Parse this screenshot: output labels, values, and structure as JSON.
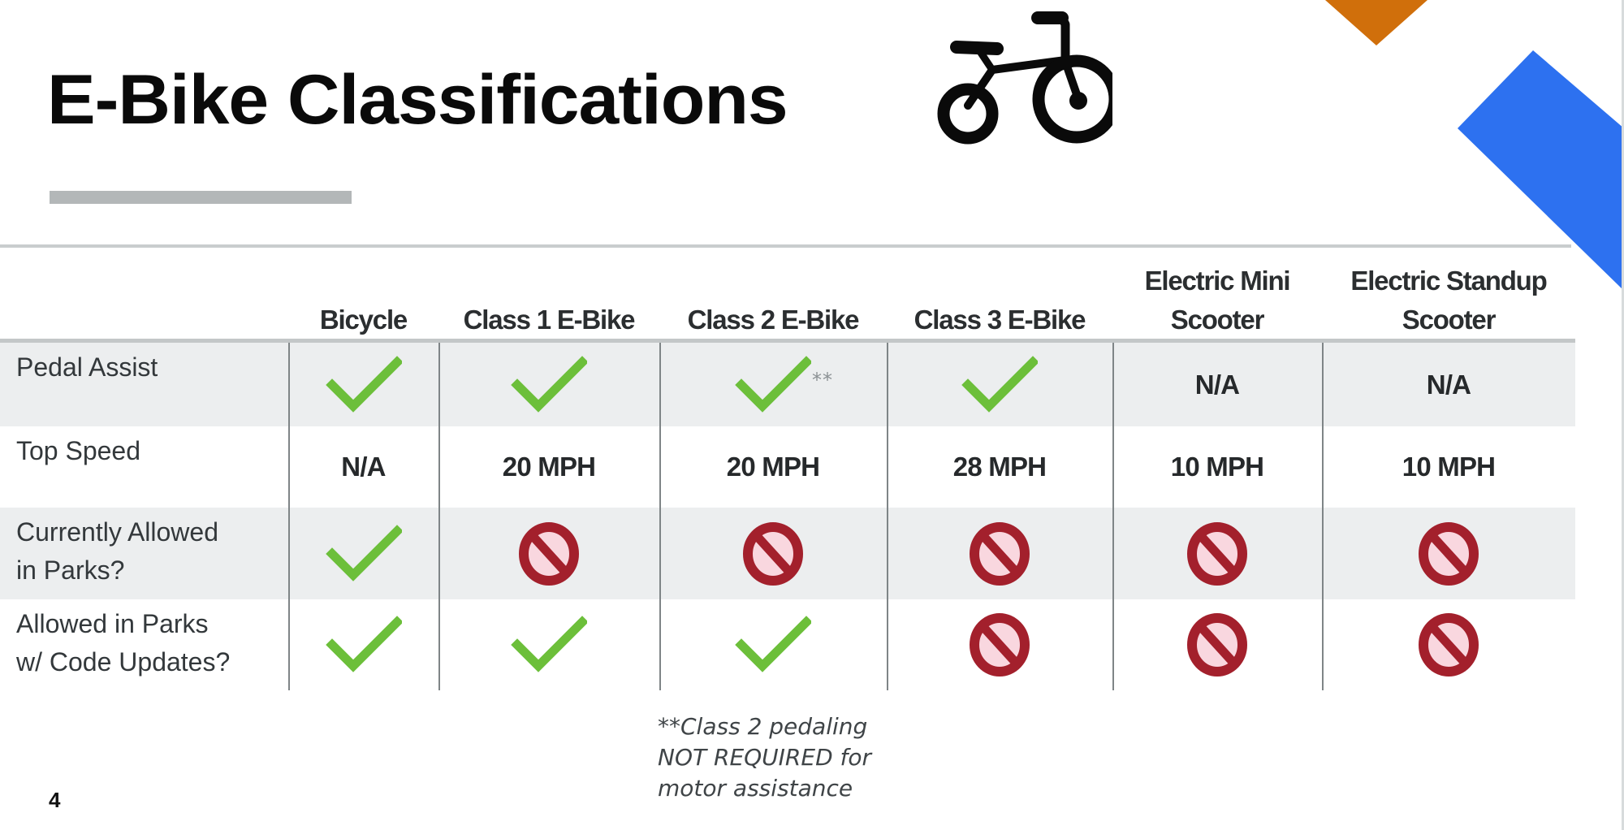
{
  "slide": {
    "title": "E-Bike Classifications",
    "page_number": "4",
    "icons": {
      "title_icon": "bicycle-icon"
    },
    "colors": {
      "accent_orange": "#D06F0B",
      "accent_blue": "#2D71F0",
      "accent_bar_gray": "#B3B7B8",
      "check_green": "#6CBF3A",
      "prohibited_red": "#A3202C",
      "row_band_gray": "#ECEEEF"
    }
  },
  "table": {
    "columns": [
      {
        "label": "Bicycle"
      },
      {
        "label": "Class 1 E-Bike"
      },
      {
        "label": "Class 2 E-Bike"
      },
      {
        "label": "Class 3 E-Bike"
      },
      {
        "label": "Electric Mini Scooter"
      },
      {
        "label": "Electric Standup Scooter"
      }
    ],
    "header_lines": [
      [
        "",
        "Bicycle"
      ],
      [
        "",
        "Class 1 E-Bike"
      ],
      [
        "",
        "Class 2 E-Bike"
      ],
      [
        "",
        "Class 3 E-Bike"
      ],
      [
        "Electric Mini",
        "Scooter"
      ],
      [
        "Electric Standup",
        "Scooter"
      ]
    ],
    "rows": [
      {
        "label_lines": [
          "Pedal Assist"
        ],
        "cells": [
          {
            "type": "check",
            "icon": "checkmark-icon"
          },
          {
            "type": "check",
            "icon": "checkmark-icon"
          },
          {
            "type": "check",
            "icon": "checkmark-icon",
            "note": "**"
          },
          {
            "type": "check",
            "icon": "checkmark-icon"
          },
          {
            "type": "text",
            "value": "N/A"
          },
          {
            "type": "text",
            "value": "N/A"
          }
        ]
      },
      {
        "label_lines": [
          "Top Speed"
        ],
        "cells": [
          {
            "type": "text",
            "value": "N/A"
          },
          {
            "type": "text",
            "value": "20 MPH"
          },
          {
            "type": "text",
            "value": "20 MPH"
          },
          {
            "type": "text",
            "value": "28 MPH"
          },
          {
            "type": "text",
            "value": "10 MPH"
          },
          {
            "type": "text",
            "value": "10 MPH"
          }
        ]
      },
      {
        "label_lines": [
          "Currently Allowed",
          "in Parks?"
        ],
        "cells": [
          {
            "type": "check",
            "icon": "checkmark-icon"
          },
          {
            "type": "no",
            "icon": "prohibited-icon"
          },
          {
            "type": "no",
            "icon": "prohibited-icon"
          },
          {
            "type": "no",
            "icon": "prohibited-icon"
          },
          {
            "type": "no",
            "icon": "prohibited-icon"
          },
          {
            "type": "no",
            "icon": "prohibited-icon"
          }
        ]
      },
      {
        "label_lines": [
          "Allowed in Parks",
          "w/ Code Updates?"
        ],
        "cells": [
          {
            "type": "check",
            "icon": "checkmark-icon"
          },
          {
            "type": "check",
            "icon": "checkmark-icon"
          },
          {
            "type": "check",
            "icon": "checkmark-icon"
          },
          {
            "type": "no",
            "icon": "prohibited-icon"
          },
          {
            "type": "no",
            "icon": "prohibited-icon"
          },
          {
            "type": "no",
            "icon": "prohibited-icon"
          }
        ]
      }
    ]
  },
  "footnote": {
    "lines": [
      "**Class 2 pedaling",
      "NOT REQUIRED for",
      "motor assistance"
    ]
  }
}
